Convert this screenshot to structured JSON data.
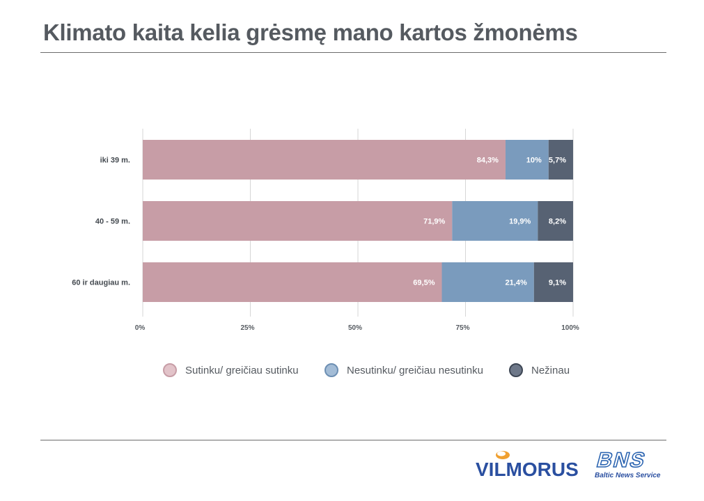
{
  "page": {
    "title": "Klimato kaita kelia grėsmę mano kartos žmonėms"
  },
  "chart_data": {
    "type": "bar",
    "orientation": "horizontal",
    "stacked": true,
    "categories": [
      "iki 39 m.",
      "40 - 59 m.",
      "60 ir daugiau m."
    ],
    "series": [
      {
        "name": "Sutinku/ greičiau sutinku",
        "values": [
          84.3,
          71.9,
          69.5
        ],
        "labels": [
          "84,3%",
          "71,9%",
          "69,5%"
        ],
        "color": "#c79da6"
      },
      {
        "name": "Nesutinku/ greičiau nesutinku",
        "values": [
          10,
          19.9,
          21.4
        ],
        "labels": [
          "10%",
          "19,9%",
          "21,4%"
        ],
        "color": "#7a9bbd"
      },
      {
        "name": "Nežinau",
        "values": [
          5.7,
          8.2,
          9.1
        ],
        "labels": [
          "5,7%",
          "8,2%",
          "9,1%"
        ],
        "color": "#576273"
      }
    ],
    "x_ticks": [
      "0%",
      "25%",
      "50%",
      "75%",
      "100%"
    ],
    "xlim": [
      0,
      100
    ],
    "grid": true,
    "legend": "bottom"
  },
  "logos": {
    "vilmorus": "VILMORUS",
    "bns": "BNS",
    "bns_tagline": "Baltic News Service"
  }
}
